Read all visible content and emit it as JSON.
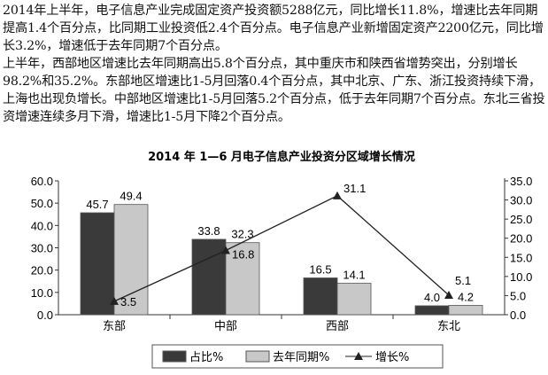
{
  "paragraphs": [
    "2014年上半年，电子信息产业完成固定资产投资额5288亿元，同比增长11.8%，增速比去年同期提高1.4个百分点，比同期工业投资低2.4个百分点。电子信息产业新增固定资产2200亿元，同比增长3.2%，增速低于去年同期7个百分点。",
    "上半年，西部地区增速比去年同期高出5.8个百分点，其中重庆市和陕西省增势突出，分别增长98.2%和35.2%。东部地区增速比1-5月回落0.4个百分点，其中北京、广东、浙江投资持续下滑，上海也出现负增长。中部地区增速比1-5月回落5.2个百分点，低于去年同期7个百分点。东北三省投资增速连续多月下滑，增速比1-5月下降2个百分点。"
  ],
  "chart_data": {
    "type": "bar+line",
    "title": "2014 年 1—6 月电子信息产业投资分区域增长情况",
    "categories": [
      "东部",
      "中部",
      "西部",
      "东北"
    ],
    "series": [
      {
        "name": "占比%",
        "type": "bar",
        "axis": "left",
        "color": "#3a3a3a",
        "values": [
          45.7,
          33.8,
          16.5,
          4.0
        ]
      },
      {
        "name": "去年同期%",
        "type": "bar",
        "axis": "left",
        "color": "#c8c8c8",
        "values": [
          49.4,
          32.3,
          14.1,
          4.2
        ]
      },
      {
        "name": "增长%",
        "type": "line",
        "axis": "right",
        "color": "#222222",
        "values": [
          3.5,
          16.8,
          31.1,
          5.1
        ]
      }
    ],
    "left_axis": {
      "ylim": [
        0,
        60
      ],
      "ticks": [
        "0.0",
        "10.0",
        "20.0",
        "30.0",
        "40.0",
        "50.0",
        "60.0"
      ]
    },
    "right_axis": {
      "ylim": [
        0,
        35
      ],
      "ticks": [
        "0.0",
        "5.0",
        "10.0",
        "15.0",
        "20.0",
        "25.0",
        "30.0",
        "35.0"
      ]
    },
    "grid": false,
    "legend": "bottom"
  }
}
